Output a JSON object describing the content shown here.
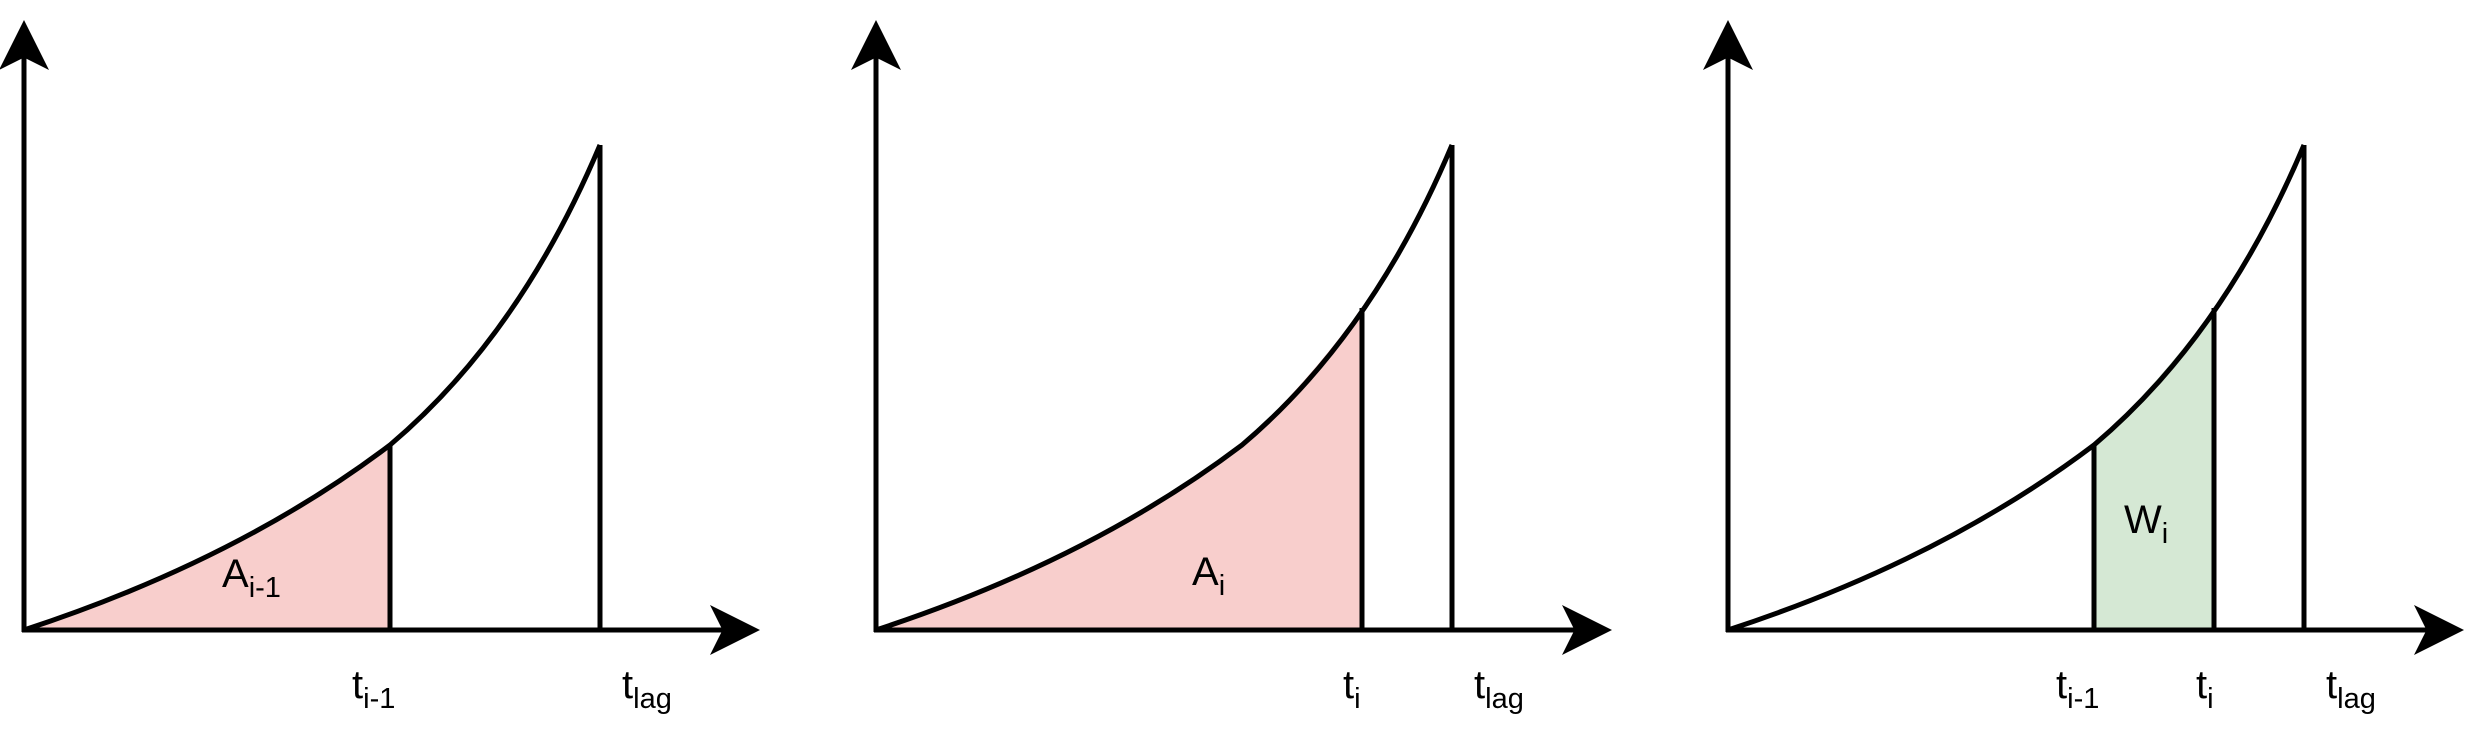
{
  "colors": {
    "line": "#000000",
    "area_fill": "#f8cecc",
    "window_fill": "#d5e8d4"
  },
  "panels": [
    {
      "area_label": {
        "base": "A",
        "sub": "i-1"
      },
      "ticks": [
        {
          "base": "t",
          "sub": "i-1"
        },
        {
          "base": "t",
          "sub": "lag"
        }
      ]
    },
    {
      "area_label": {
        "base": "A",
        "sub": "i"
      },
      "ticks": [
        {
          "base": "t",
          "sub": "i"
        },
        {
          "base": "t",
          "sub": "lag"
        }
      ]
    },
    {
      "area_label": {
        "base": "W",
        "sub": "i"
      },
      "ticks": [
        {
          "base": "t",
          "sub": "i-1"
        },
        {
          "base": "t",
          "sub": "i"
        },
        {
          "base": "t",
          "sub": "lag"
        }
      ]
    }
  ]
}
